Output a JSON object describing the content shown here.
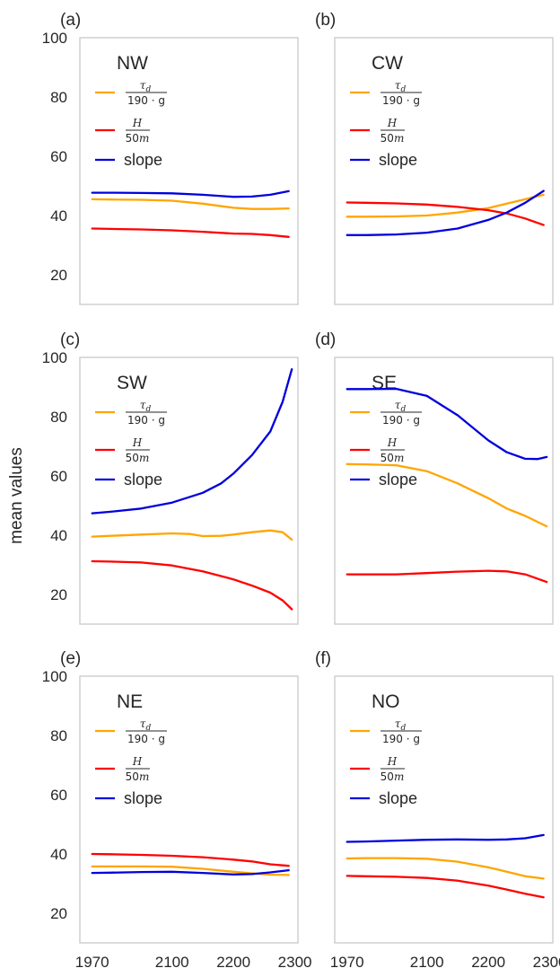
{
  "chart_data": {
    "type": "line",
    "ylabel": "mean values",
    "ylim": [
      10,
      100
    ],
    "xlim": [
      1950,
      2305
    ],
    "xticks": [
      1970,
      2100,
      2200,
      2300
    ],
    "yticks": [
      20,
      40,
      60,
      80,
      100
    ],
    "grid": false,
    "legend_placement": "upper-left",
    "colors": {
      "tau": "#FFA500",
      "H": "#FF0000",
      "slope": "#0000DD"
    },
    "legend_labels": {
      "tau_num": "τ",
      "tau_sub": "d",
      "tau_den": "190 · g",
      "H_num": "H",
      "H_den_num": "50",
      "H_den_unit": "m",
      "slope": "slope"
    },
    "panels": [
      {
        "letter": "(a)",
        "region": "NW",
        "series": [
          {
            "key": "tau",
            "x": [
              1970,
              2000,
              2050,
              2100,
              2150,
              2200,
              2230,
              2260,
              2290
            ],
            "y": [
              45.5,
              45.4,
              45.3,
              45.0,
              44.0,
              42.6,
              42.2,
              42.2,
              42.4
            ]
          },
          {
            "key": "H",
            "x": [
              1970,
              2000,
              2050,
              2100,
              2150,
              2200,
              2230,
              2260,
              2290
            ],
            "y": [
              35.6,
              35.5,
              35.3,
              35.0,
              34.5,
              33.9,
              33.8,
              33.4,
              32.8
            ]
          },
          {
            "key": "slope",
            "x": [
              1970,
              2000,
              2050,
              2100,
              2150,
              2200,
              2230,
              2260,
              2290
            ],
            "y": [
              47.7,
              47.7,
              47.6,
              47.5,
              47.0,
              46.3,
              46.4,
              47.0,
              48.2
            ]
          }
        ]
      },
      {
        "letter": "(b)",
        "region": "CW",
        "series": [
          {
            "key": "tau",
            "x": [
              1970,
              2000,
              2050,
              2100,
              2150,
              2200,
              2230,
              2260,
              2290
            ],
            "y": [
              39.6,
              39.6,
              39.7,
              40.0,
              41.0,
              42.5,
              44.0,
              45.5,
              47.0
            ]
          },
          {
            "key": "H",
            "x": [
              1970,
              2000,
              2050,
              2100,
              2150,
              2200,
              2230,
              2260,
              2290
            ],
            "y": [
              44.4,
              44.3,
              44.1,
              43.7,
              42.9,
              41.8,
              40.7,
              39.0,
              36.8
            ]
          },
          {
            "key": "slope",
            "x": [
              1970,
              2000,
              2050,
              2100,
              2150,
              2200,
              2230,
              2260,
              2290
            ],
            "y": [
              33.4,
              33.4,
              33.6,
              34.2,
              35.6,
              38.5,
              41.0,
              44.3,
              48.3
            ]
          }
        ]
      },
      {
        "letter": "(c)",
        "region": "SW",
        "series": [
          {
            "key": "tau",
            "x": [
              1970,
              2000,
              2050,
              2100,
              2130,
              2150,
              2180,
              2200,
              2230,
              2260,
              2280,
              2295
            ],
            "y": [
              39.5,
              39.8,
              40.2,
              40.6,
              40.4,
              39.7,
              39.8,
              40.2,
              41.0,
              41.6,
              41.0,
              38.5
            ]
          },
          {
            "key": "H",
            "x": [
              1970,
              2000,
              2050,
              2100,
              2150,
              2200,
              2230,
              2260,
              2280,
              2295
            ],
            "y": [
              31.2,
              31.1,
              30.8,
              29.8,
              27.8,
              25.1,
              23.0,
              20.6,
              18.0,
              15.0
            ]
          },
          {
            "key": "slope",
            "x": [
              1970,
              2000,
              2050,
              2100,
              2150,
              2180,
              2200,
              2230,
              2260,
              2280,
              2295
            ],
            "y": [
              47.4,
              47.9,
              49.0,
              51.0,
              54.3,
              57.5,
              60.8,
              67.0,
              75.0,
              85.0,
              96.0
            ]
          }
        ]
      },
      {
        "letter": "(d)",
        "region": "SE",
        "series": [
          {
            "key": "tau",
            "x": [
              1970,
              2000,
              2050,
              2100,
              2150,
              2200,
              2230,
              2260,
              2295
            ],
            "y": [
              64.0,
              63.9,
              63.6,
              61.6,
              57.5,
              52.5,
              49.0,
              46.5,
              43.0
            ]
          },
          {
            "key": "H",
            "x": [
              1970,
              2000,
              2050,
              2100,
              2150,
              2200,
              2230,
              2260,
              2295
            ],
            "y": [
              26.8,
              26.8,
              26.8,
              27.2,
              27.7,
              28.0,
              27.8,
              26.8,
              24.2
            ]
          },
          {
            "key": "slope",
            "x": [
              1970,
              2000,
              2050,
              2100,
              2150,
              2200,
              2230,
              2260,
              2280,
              2295
            ],
            "y": [
              89.3,
              89.3,
              89.4,
              87.0,
              80.5,
              72.0,
              68.0,
              65.8,
              65.7,
              66.4
            ]
          }
        ]
      },
      {
        "letter": "(e)",
        "region": "NE",
        "series": [
          {
            "key": "tau",
            "x": [
              1970,
              2000,
              2050,
              2100,
              2150,
              2200,
              2230,
              2260,
              2290
            ],
            "y": [
              35.8,
              35.8,
              35.8,
              35.7,
              35.0,
              34.0,
              33.5,
              33.0,
              32.9
            ]
          },
          {
            "key": "H",
            "x": [
              1970,
              2000,
              2050,
              2100,
              2150,
              2200,
              2230,
              2260,
              2290
            ],
            "y": [
              40.0,
              39.9,
              39.7,
              39.4,
              38.9,
              38.1,
              37.5,
              36.5,
              36.0
            ]
          },
          {
            "key": "slope",
            "x": [
              1970,
              2000,
              2050,
              2100,
              2150,
              2200,
              2230,
              2260,
              2290
            ],
            "y": [
              33.6,
              33.7,
              33.9,
              34.0,
              33.6,
              33.1,
              33.2,
              33.8,
              34.5
            ]
          }
        ]
      },
      {
        "letter": "(f)",
        "region": "NO",
        "series": [
          {
            "key": "tau",
            "x": [
              1970,
              2000,
              2050,
              2100,
              2150,
              2200,
              2230,
              2260,
              2290
            ],
            "y": [
              38.5,
              38.6,
              38.6,
              38.4,
              37.4,
              35.5,
              34.0,
              32.5,
              31.7
            ]
          },
          {
            "key": "H",
            "x": [
              1970,
              2000,
              2050,
              2100,
              2150,
              2200,
              2230,
              2260,
              2290
            ],
            "y": [
              32.6,
              32.5,
              32.3,
              31.9,
              31.0,
              29.3,
              28.0,
              26.6,
              25.4
            ]
          },
          {
            "key": "slope",
            "x": [
              1970,
              2000,
              2050,
              2100,
              2150,
              2200,
              2230,
              2260,
              2290
            ],
            "y": [
              44.1,
              44.2,
              44.5,
              44.8,
              44.9,
              44.8,
              44.9,
              45.3,
              46.4
            ]
          }
        ]
      }
    ]
  }
}
